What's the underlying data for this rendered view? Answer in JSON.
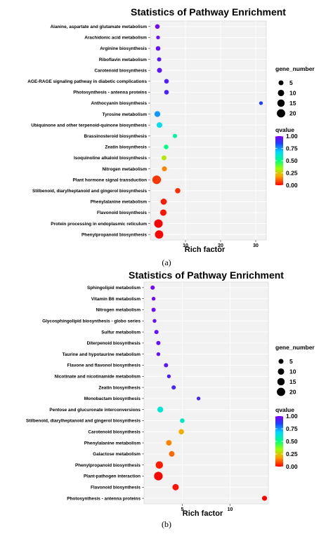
{
  "chart_data": [
    {
      "type": "scatter",
      "panel_label": "(a)",
      "title": "Statistics of Pathway Enrichment",
      "xlabel": "Rich factor",
      "ylabel": "",
      "xticks": [
        10,
        20,
        30
      ],
      "xlim": [
        0,
        33
      ],
      "categories": [
        "Phenylpropanoid biosynthesis",
        "Protein processing in endoplasmic reticulum",
        "Flavonoid biosynthesis",
        "Phenylalanine metabolism",
        "Stilbenoid, diarylheptanoid and gingerol biosynthesis",
        "Plant hormone signal transduction",
        "Nitrogen metabolism",
        "Isoquinoline alkaloid biosynthesis",
        "Zeatin biosynthesis",
        "Brassinosteroid biosynthesis",
        "Ubiquinone and other terpenoid-quinone biosynthesis",
        "Tyrosine metabolism",
        "Anthocyanin biosynthesis",
        "Photosynthesis - antenna proteins",
        "AGE-RAGE signaling pathway in diabetic complications",
        "Carotenoid biosynthesis",
        "Riboflavin metabolism",
        "Arginine biosynthesis",
        "Arachidonic acid metabolism",
        "Alanine, aspartate and glutamate metabolism"
      ],
      "points": [
        {
          "category": "Phenylpropanoid biosynthesis",
          "rich_factor": 2.5,
          "gene_number": 20,
          "qvalue": 0.0
        },
        {
          "category": "Protein processing in endoplasmic reticulum",
          "rich_factor": 2.3,
          "gene_number": 21,
          "qvalue": 0.0
        },
        {
          "category": "Flavonoid biosynthesis",
          "rich_factor": 3.7,
          "gene_number": 10,
          "qvalue": 0.02
        },
        {
          "category": "Phenylalanine metabolism",
          "rich_factor": 3.8,
          "gene_number": 9,
          "qvalue": 0.03
        },
        {
          "category": "Stilbenoid, diarylheptanoid and gingerol biosynthesis",
          "rich_factor": 7.8,
          "gene_number": 6,
          "qvalue": 0.05
        },
        {
          "category": "Plant hormone signal transduction",
          "rich_factor": 1.8,
          "gene_number": 22,
          "qvalue": 0.06
        },
        {
          "category": "Nitrogen metabolism",
          "rich_factor": 4.0,
          "gene_number": 5,
          "qvalue": 0.15
        },
        {
          "category": "Isoquinoline alkaloid biosynthesis",
          "rich_factor": 3.9,
          "gene_number": 5,
          "qvalue": 0.3
        },
        {
          "category": "Zeatin biosynthesis",
          "rich_factor": 4.5,
          "gene_number": 4,
          "qvalue": 0.5
        },
        {
          "category": "Brassinosteroid biosynthesis",
          "rich_factor": 7.0,
          "gene_number": 3,
          "qvalue": 0.55
        },
        {
          "category": "Ubiquinone and other terpenoid-quinone biosynthesis",
          "rich_factor": 2.6,
          "gene_number": 7,
          "qvalue": 0.65
        },
        {
          "category": "Tyrosine metabolism",
          "rich_factor": 2.0,
          "gene_number": 8,
          "qvalue": 0.75
        },
        {
          "category": "Anthocyanin biosynthesis",
          "rich_factor": 31.5,
          "gene_number": 2,
          "qvalue": 0.85
        },
        {
          "category": "Photosynthesis - antenna proteins",
          "rich_factor": 4.6,
          "gene_number": 4,
          "qvalue": 0.92
        },
        {
          "category": "AGE-RAGE signaling pathway in diabetic complications",
          "rich_factor": 4.6,
          "gene_number": 4,
          "qvalue": 0.93
        },
        {
          "category": "Carotenoid biosynthesis",
          "rich_factor": 2.6,
          "gene_number": 5,
          "qvalue": 0.95
        },
        {
          "category": "Riboflavin metabolism",
          "rich_factor": 2.5,
          "gene_number": 3,
          "qvalue": 0.95
        },
        {
          "category": "Arginine biosynthesis",
          "rich_factor": 2.2,
          "gene_number": 4,
          "qvalue": 0.96
        },
        {
          "category": "Arachidonic acid metabolism",
          "rich_factor": 2.2,
          "gene_number": 2,
          "qvalue": 0.97
        },
        {
          "category": "Alanine, aspartate and glutamate metabolism",
          "rich_factor": 2.0,
          "gene_number": 4,
          "qvalue": 0.98
        }
      ],
      "legend": {
        "size_title": "gene_number",
        "size_values": [
          5,
          10,
          15,
          20
        ],
        "color_title": "qvalue",
        "color_ticks": [
          "1.00",
          "0.75",
          "0.50",
          "0.25",
          "0.00"
        ],
        "color_range": [
          0.0,
          1.0
        ],
        "placement": "right"
      }
    },
    {
      "type": "scatter",
      "panel_label": "(b)",
      "title": "Statistics of Pathway Enrichment",
      "xlabel": "Rich factor",
      "ylabel": "",
      "xticks": [
        5,
        10
      ],
      "xlim": [
        1.0,
        14.0
      ],
      "categories": [
        "Photosynthesis - antenna proteins",
        "Flavonoid biosynthesis",
        "Plant-pathogen interaction",
        "Phenylpropanoid biosynthesis",
        "Galactose metabolism",
        "Phenylalanine metabolism",
        "Carotenoid biosynthesis",
        "Stilbenoid, diarylheptanoid and gingerol biosynthesis",
        "Pentose and glucuronate interconversions",
        "Monobactam biosynthesis",
        "Zeatin biosynthesis",
        "Nicotinate and nicotinamide metabolism",
        "Flavone and flavonol biosynthesis",
        "Taurine and hypotaurine metabolism",
        "Diterpenoid biosynthesis",
        "Sulfur metabolism",
        "Glycosphingolipid biosynthesis - globo series",
        "Nitrogen metabolism",
        "Vitamin B6 metabolism",
        "Sphingolipid metabolism"
      ],
      "points": [
        {
          "category": "Photosynthesis - antenna proteins",
          "rich_factor": 13.6,
          "gene_number": 5,
          "qvalue": 0.0
        },
        {
          "category": "Flavonoid biosynthesis",
          "rich_factor": 4.3,
          "gene_number": 10,
          "qvalue": 0.02
        },
        {
          "category": "Plant-pathogen interaction",
          "rich_factor": 2.5,
          "gene_number": 22,
          "qvalue": 0.0
        },
        {
          "category": "Phenylpropanoid biosynthesis",
          "rich_factor": 2.6,
          "gene_number": 15,
          "qvalue": 0.03
        },
        {
          "category": "Galactose metabolism",
          "rich_factor": 3.9,
          "gene_number": 7,
          "qvalue": 0.12
        },
        {
          "category": "Phenylalanine metabolism",
          "rich_factor": 3.6,
          "gene_number": 7,
          "qvalue": 0.15
        },
        {
          "category": "Carotenoid biosynthesis",
          "rich_factor": 4.9,
          "gene_number": 6,
          "qvalue": 0.2
        },
        {
          "category": "Stilbenoid, diarylheptanoid and gingerol biosynthesis",
          "rich_factor": 5.0,
          "gene_number": 4,
          "qvalue": 0.6
        },
        {
          "category": "Pentose and glucuronate interconversions",
          "rich_factor": 2.7,
          "gene_number": 8,
          "qvalue": 0.62
        },
        {
          "category": "Monobactam biosynthesis",
          "rich_factor": 6.7,
          "gene_number": 2,
          "qvalue": 0.92
        },
        {
          "category": "Zeatin biosynthesis",
          "rich_factor": 4.1,
          "gene_number": 3,
          "qvalue": 0.92
        },
        {
          "category": "Nicotinate and nicotinamide metabolism",
          "rich_factor": 3.6,
          "gene_number": 2,
          "qvalue": 0.93
        },
        {
          "category": "Flavone and flavonol biosynthesis",
          "rich_factor": 3.3,
          "gene_number": 3,
          "qvalue": 0.94
        },
        {
          "category": "Taurine and hypotaurine metabolism",
          "rich_factor": 2.5,
          "gene_number": 2,
          "qvalue": 0.96
        },
        {
          "category": "Diterpenoid biosynthesis",
          "rich_factor": 2.5,
          "gene_number": 3,
          "qvalue": 0.96
        },
        {
          "category": "Sulfur metabolism",
          "rich_factor": 2.3,
          "gene_number": 3,
          "qvalue": 0.96
        },
        {
          "category": "Glycosphingolipid biosynthesis - globo series",
          "rich_factor": 2.1,
          "gene_number": 2,
          "qvalue": 0.97
        },
        {
          "category": "Nitrogen metabolism",
          "rich_factor": 2.0,
          "gene_number": 3,
          "qvalue": 0.97
        },
        {
          "category": "Vitamin B6 metabolism",
          "rich_factor": 2.0,
          "gene_number": 2,
          "qvalue": 0.98
        },
        {
          "category": "Sphingolipid metabolism",
          "rich_factor": 1.9,
          "gene_number": 3,
          "qvalue": 0.98
        }
      ],
      "legend": {
        "size_title": "gene_number",
        "size_values": [
          5,
          10,
          15,
          20
        ],
        "color_title": "qvalue",
        "color_ticks": [
          "1.00",
          "0.75",
          "0.50",
          "0.25",
          "0.00"
        ],
        "color_range": [
          0.0,
          1.0
        ],
        "placement": "right"
      }
    }
  ]
}
